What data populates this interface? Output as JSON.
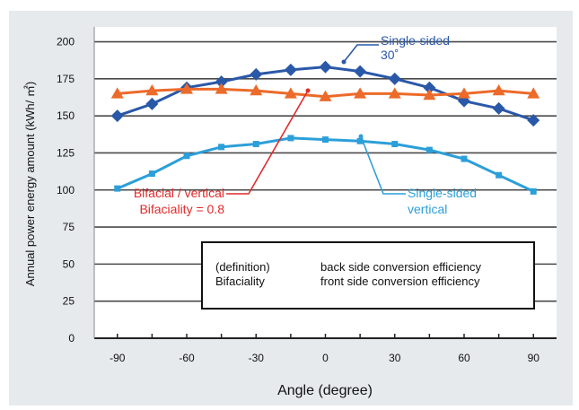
{
  "chart_data": {
    "type": "line",
    "xlabel": "Angle (degree)",
    "ylabel": "Annual power energy amount (kWh/ ㎡)",
    "xlim": [
      -100,
      100
    ],
    "ylim": [
      0,
      210
    ],
    "x_ticks": [
      -90,
      -60,
      -30,
      0,
      30,
      60,
      90
    ],
    "y_ticks": [
      0,
      25,
      50,
      75,
      100,
      125,
      150,
      175,
      200
    ],
    "grid": "horizontal",
    "series": [
      {
        "key": "single30",
        "color": "#2a58a8",
        "marker": "diamond",
        "x": [
          -90,
          -75,
          -60,
          -45,
          -30,
          -15,
          0,
          15,
          30,
          45,
          60,
          75,
          90
        ],
        "values": [
          150,
          158,
          169,
          173,
          178,
          181,
          183,
          180,
          175,
          169,
          160,
          155,
          147
        ]
      },
      {
        "key": "bifacial",
        "color": "#ec6a2a",
        "marker": "triangle",
        "x": [
          -90,
          -75,
          -60,
          -45,
          -30,
          -15,
          0,
          15,
          30,
          45,
          60,
          75,
          90
        ],
        "values": [
          165,
          167,
          168,
          168,
          167,
          165,
          163,
          165,
          165,
          164,
          165,
          167,
          165
        ]
      },
      {
        "key": "singlevert",
        "color": "#2c9fd9",
        "marker": "square",
        "x": [
          -90,
          -75,
          -60,
          -45,
          -30,
          -15,
          0,
          15,
          30,
          45,
          60,
          75,
          90
        ],
        "values": [
          101,
          111,
          123,
          129,
          131,
          135,
          134,
          133,
          131,
          127,
          121,
          110,
          99
        ]
      }
    ],
    "annotations": {
      "single30": {
        "line1": "Single-sided",
        "line2": "30˚",
        "color": "#2a58a8"
      },
      "bifacial": {
        "line1": "Bifacial / vertical",
        "line2": "Bifaciality = 0.8",
        "color": "#e02a2a"
      },
      "singlevert": {
        "line1": "Single-sided",
        "line2": "vertical",
        "color": "#2c9fd9"
      }
    },
    "definition_box": {
      "left_line1": "(definition)",
      "left_line2": "Bifaciality",
      "right_line1": "back side conversion efficiency",
      "right_line2": "front side conversion efficiency"
    }
  }
}
